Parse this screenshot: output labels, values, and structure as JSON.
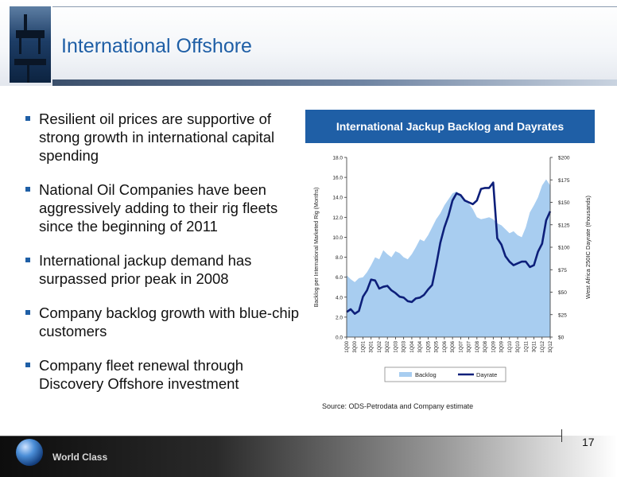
{
  "header": {
    "title": "International Offshore"
  },
  "bullets": [
    "Resilient oil prices are supportive of strong growth in international capital spending",
    "National Oil Companies have been aggressively adding to their rig fleets since the beginning of 2011",
    "International jackup demand has surpassed prior peak in 2008",
    "Company backlog growth with blue-chip customers",
    "Company fleet renewal through Discovery Offshore investment"
  ],
  "chart_banner": "International Jackup Backlog and Dayrates",
  "chart_data": {
    "type": "area",
    "title": "International Jackup Backlog and Dayrates",
    "ylabel": "Backlog per International Marketed Rig (Months)",
    "y2label": "West Africa 250IC Dayrate (thousands)",
    "ylim": [
      0,
      18
    ],
    "y2lim": [
      0,
      200
    ],
    "yticks": [
      "0.0",
      "2.0",
      "4.0",
      "6.0",
      "8.0",
      "10.0",
      "12.0",
      "14.0",
      "16.0",
      "18.0"
    ],
    "y2ticks": [
      "$0",
      "$25",
      "$50",
      "$75",
      "$100",
      "$125",
      "$150",
      "$175",
      "$200"
    ],
    "xticks": [
      "1Q00",
      "3Q00",
      "1Q01",
      "3Q01",
      "1Q02",
      "3Q02",
      "1Q03",
      "3Q03",
      "1Q04",
      "3Q04",
      "1Q05",
      "3Q05",
      "1Q06",
      "3Q06",
      "1Q07",
      "3Q07",
      "1Q08",
      "3Q08",
      "1Q09",
      "3Q09",
      "1Q10",
      "3Q10",
      "1Q11",
      "3Q11",
      "1Q12",
      "3Q12"
    ],
    "x": [
      "1Q00",
      "2Q00",
      "3Q00",
      "4Q00",
      "1Q01",
      "2Q01",
      "3Q01",
      "4Q01",
      "1Q02",
      "2Q02",
      "3Q02",
      "4Q02",
      "1Q03",
      "2Q03",
      "3Q03",
      "4Q03",
      "1Q04",
      "2Q04",
      "3Q04",
      "4Q04",
      "1Q05",
      "2Q05",
      "3Q05",
      "4Q05",
      "1Q06",
      "2Q06",
      "3Q06",
      "4Q06",
      "1Q07",
      "2Q07",
      "3Q07",
      "4Q07",
      "1Q08",
      "2Q08",
      "3Q08",
      "4Q08",
      "1Q09",
      "2Q09",
      "3Q09",
      "4Q09",
      "1Q10",
      "2Q10",
      "3Q10",
      "4Q10",
      "1Q11",
      "2Q11",
      "3Q11",
      "4Q11",
      "1Q12",
      "2Q12",
      "3Q12"
    ],
    "series": [
      {
        "name": "Backlog",
        "axis": "left",
        "color": "#a8cdf0",
        "values": [
          6.2,
          5.8,
          5.5,
          5.9,
          6.0,
          6.5,
          7.2,
          8.0,
          7.8,
          8.7,
          8.3,
          8.0,
          8.6,
          8.4,
          8.0,
          7.8,
          8.3,
          9.0,
          9.8,
          9.6,
          10.2,
          11.0,
          11.8,
          12.4,
          13.2,
          13.8,
          14.4,
          14.6,
          14.2,
          13.8,
          13.4,
          12.8,
          12.0,
          11.8,
          11.9,
          12.0,
          11.8,
          11.4,
          11.2,
          10.8,
          10.4,
          10.6,
          10.2,
          10.0,
          11.0,
          12.5,
          13.2,
          14.0,
          15.2,
          15.8,
          15.2
        ]
      },
      {
        "name": "Dayrate",
        "axis": "right",
        "color": "#0d1f7a",
        "values": [
          28,
          31,
          26,
          29,
          45,
          52,
          64,
          63,
          54,
          56,
          57,
          52,
          49,
          45,
          44,
          40,
          39,
          43,
          44,
          47,
          53,
          58,
          80,
          105,
          122,
          135,
          152,
          160,
          158,
          152,
          150,
          148,
          152,
          165,
          166,
          166,
          172,
          110,
          103,
          90,
          84,
          80,
          82,
          84,
          84,
          78,
          80,
          95,
          104,
          130,
          140
        ]
      }
    ],
    "legend": [
      "Backlog",
      "Dayrate"
    ],
    "legend_position": "bottom",
    "grid": false
  },
  "source": "Source: ODS-Petrodata and Company estimate",
  "footer": {
    "brand": "World Class",
    "page_number": "17"
  }
}
